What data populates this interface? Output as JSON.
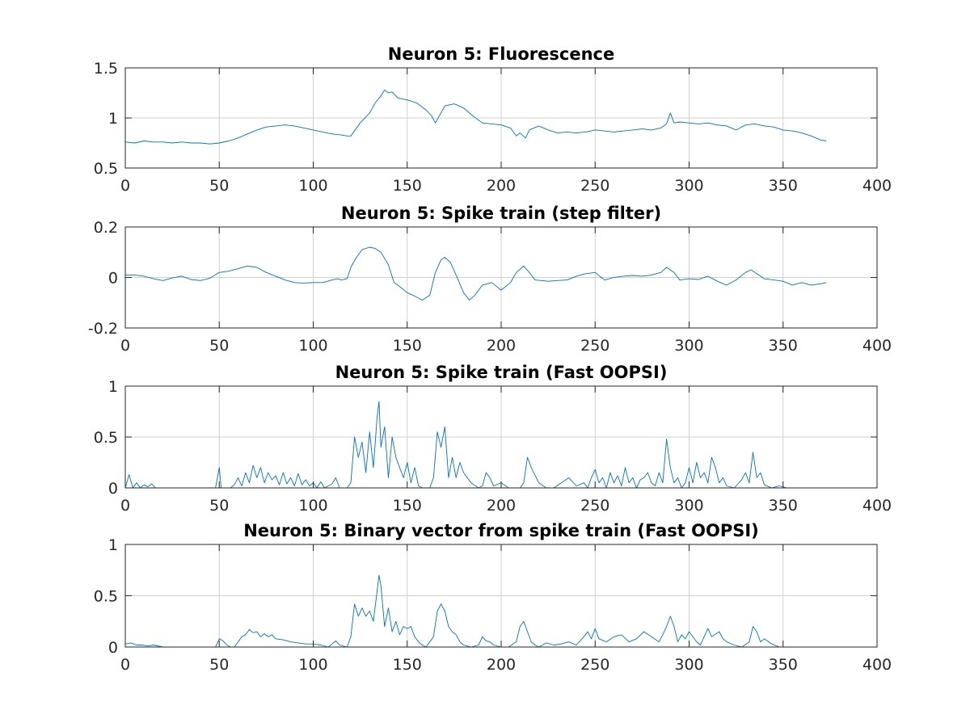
{
  "colors": {
    "series": "#0072BD",
    "axes": "#262626",
    "grid": "#d0d0d0"
  },
  "chart_data": [
    {
      "type": "line",
      "title": "Neuron 5: Fluorescence",
      "xlim": [
        0,
        400
      ],
      "ylim": [
        0.5,
        1.5
      ],
      "xticks": [
        0,
        50,
        100,
        150,
        200,
        250,
        300,
        350,
        400
      ],
      "xtick_labels": [
        "0",
        "50",
        "100",
        "150",
        "200",
        "250",
        "300",
        "350",
        "400"
      ],
      "yticks": [
        0.5,
        1,
        1.5
      ],
      "ytick_labels": [
        "0.5",
        "1",
        "1.5"
      ],
      "grid": true,
      "series": [
        {
          "x": [
            0,
            5,
            10,
            15,
            20,
            25,
            30,
            35,
            40,
            45,
            50,
            55,
            60,
            65,
            70,
            75,
            80,
            85,
            90,
            95,
            100,
            105,
            110,
            115,
            118,
            120,
            125,
            130,
            133,
            136,
            138,
            140,
            142,
            145,
            150,
            155,
            160,
            163,
            165,
            168,
            170,
            175,
            180,
            185,
            190,
            195,
            200,
            205,
            208,
            210,
            213,
            215,
            220,
            225,
            230,
            235,
            240,
            245,
            250,
            255,
            260,
            265,
            270,
            275,
            280,
            285,
            288,
            290,
            292,
            295,
            300,
            305,
            310,
            315,
            320,
            325,
            330,
            335,
            340,
            345,
            350,
            355,
            360,
            365,
            370,
            373
          ],
          "y": [
            0.76,
            0.75,
            0.77,
            0.76,
            0.76,
            0.75,
            0.76,
            0.75,
            0.75,
            0.74,
            0.75,
            0.77,
            0.8,
            0.84,
            0.88,
            0.91,
            0.92,
            0.93,
            0.92,
            0.9,
            0.88,
            0.86,
            0.84,
            0.83,
            0.82,
            0.82,
            0.95,
            1.05,
            1.15,
            1.22,
            1.28,
            1.25,
            1.26,
            1.2,
            1.18,
            1.15,
            1.08,
            1.02,
            0.95,
            1.05,
            1.12,
            1.14,
            1.1,
            1.02,
            0.95,
            0.94,
            0.93,
            0.9,
            0.82,
            0.85,
            0.8,
            0.88,
            0.92,
            0.88,
            0.85,
            0.86,
            0.85,
            0.86,
            0.88,
            0.87,
            0.86,
            0.87,
            0.88,
            0.89,
            0.88,
            0.9,
            0.94,
            1.05,
            0.95,
            0.96,
            0.95,
            0.94,
            0.95,
            0.93,
            0.92,
            0.88,
            0.93,
            0.94,
            0.92,
            0.91,
            0.88,
            0.87,
            0.85,
            0.82,
            0.78,
            0.77
          ]
        }
      ]
    },
    {
      "type": "line",
      "title": "Neuron 5: Spike train (step filter)",
      "xlim": [
        0,
        400
      ],
      "ylim": [
        -0.2,
        0.2
      ],
      "xticks": [
        0,
        50,
        100,
        150,
        200,
        250,
        300,
        350,
        400
      ],
      "xtick_labels": [
        "0",
        "50",
        "100",
        "150",
        "200",
        "250",
        "300",
        "350",
        "400"
      ],
      "yticks": [
        -0.2,
        0,
        0.2
      ],
      "ytick_labels": [
        "-0.2",
        "0",
        "0.2"
      ],
      "grid": true,
      "series": [
        {
          "x": [
            0,
            5,
            10,
            15,
            20,
            25,
            30,
            35,
            40,
            45,
            50,
            55,
            60,
            65,
            70,
            75,
            80,
            85,
            90,
            95,
            100,
            105,
            110,
            113,
            115,
            118,
            120,
            123,
            126,
            130,
            133,
            136,
            140,
            143,
            145,
            150,
            153,
            158,
            162,
            165,
            168,
            170,
            173,
            176,
            180,
            183,
            186,
            190,
            195,
            200,
            205,
            208,
            212,
            215,
            218,
            225,
            230,
            235,
            240,
            245,
            250,
            255,
            260,
            265,
            270,
            275,
            280,
            285,
            288,
            292,
            295,
            300,
            305,
            310,
            315,
            320,
            325,
            330,
            333,
            336,
            340,
            345,
            350,
            355,
            360,
            365,
            370,
            373
          ],
          "y": [
            0.01,
            0.01,
            0.005,
            -0.005,
            -0.012,
            -0.002,
            0.005,
            -0.008,
            -0.012,
            -0.003,
            0.02,
            0.025,
            0.035,
            0.045,
            0.04,
            0.02,
            0.005,
            -0.01,
            -0.02,
            -0.022,
            -0.02,
            -0.02,
            -0.01,
            -0.005,
            -0.01,
            -0.005,
            0.04,
            0.08,
            0.11,
            0.12,
            0.115,
            0.1,
            0.05,
            -0.02,
            -0.03,
            -0.06,
            -0.07,
            -0.09,
            -0.07,
            0.02,
            0.07,
            0.08,
            0.06,
            0.01,
            -0.06,
            -0.09,
            -0.07,
            -0.03,
            -0.02,
            -0.05,
            -0.02,
            0.02,
            0.045,
            0.02,
            -0.01,
            -0.015,
            -0.012,
            -0.01,
            0.005,
            0.015,
            0.02,
            -0.01,
            0.0,
            0.005,
            0.008,
            0.005,
            0.01,
            0.02,
            0.04,
            0.02,
            -0.01,
            -0.005,
            -0.008,
            0.005,
            -0.015,
            -0.03,
            -0.01,
            0.02,
            0.03,
            0.015,
            -0.005,
            -0.01,
            -0.015,
            -0.03,
            -0.02,
            -0.03,
            -0.025,
            -0.02
          ]
        }
      ]
    },
    {
      "type": "line",
      "title": "Neuron 5: Spike train (Fast OOPSI)",
      "xlim": [
        0,
        400
      ],
      "ylim": [
        0,
        1
      ],
      "xticks": [
        0,
        50,
        100,
        150,
        200,
        250,
        300,
        350,
        400
      ],
      "xtick_labels": [
        "0",
        "50",
        "100",
        "150",
        "200",
        "250",
        "300",
        "350",
        "400"
      ],
      "yticks": [
        0,
        0.5,
        1
      ],
      "ytick_labels": [
        "0",
        "0.5",
        "1"
      ],
      "grid": true,
      "series": [
        {
          "x": [
            0,
            2,
            4,
            6,
            8,
            10,
            12,
            14,
            16,
            20,
            30,
            40,
            48,
            50,
            51,
            52,
            54,
            56,
            58,
            60,
            62,
            64,
            66,
            68,
            70,
            72,
            74,
            76,
            78,
            80,
            82,
            84,
            86,
            88,
            90,
            92,
            94,
            96,
            98,
            100,
            102,
            104,
            106,
            108,
            110,
            112,
            114,
            116,
            118,
            120,
            122,
            124,
            126,
            128,
            130,
            132,
            134,
            135,
            136,
            138,
            140,
            142,
            144,
            146,
            148,
            150,
            152,
            154,
            156,
            158,
            160,
            162,
            164,
            166,
            168,
            170,
            172,
            174,
            176,
            178,
            180,
            184,
            188,
            190,
            192,
            194,
            196,
            200,
            204,
            208,
            210,
            212,
            214,
            216,
            220,
            224,
            228,
            232,
            236,
            240,
            244,
            246,
            248,
            250,
            252,
            254,
            256,
            258,
            260,
            262,
            264,
            266,
            268,
            270,
            272,
            274,
            276,
            278,
            280,
            282,
            284,
            286,
            288,
            290,
            292,
            294,
            296,
            298,
            300,
            302,
            304,
            306,
            308,
            310,
            312,
            314,
            316,
            318,
            320,
            324,
            328,
            330,
            332,
            334,
            336,
            338,
            340,
            344,
            348,
            352,
            360,
            370,
            374
          ],
          "y": [
            0,
            0.13,
            0,
            0.05,
            0,
            0.03,
            0.01,
            0.04,
            0,
            0,
            0,
            0,
            0,
            0.2,
            0,
            0,
            0,
            0,
            0.03,
            0.1,
            0.02,
            0.15,
            0.05,
            0.22,
            0.1,
            0.2,
            0.05,
            0.15,
            0.08,
            0.12,
            0.03,
            0.15,
            0.04,
            0.1,
            0.02,
            0.14,
            0.03,
            0.08,
            0.02,
            0.05,
            0,
            0.06,
            0,
            0.02,
            0.04,
            0.1,
            0,
            0,
            0,
            0.05,
            0.5,
            0.3,
            0.45,
            0.15,
            0.55,
            0.2,
            0.7,
            0.85,
            0.4,
            0.6,
            0.1,
            0.5,
            0.3,
            0.2,
            0.1,
            0.25,
            0.05,
            0.2,
            0.02,
            0,
            0,
            0,
            0.1,
            0.55,
            0.4,
            0.6,
            0.1,
            0.3,
            0.1,
            0.25,
            0.15,
            0.05,
            0,
            0.02,
            0.15,
            0.1,
            0.02,
            0.05,
            0,
            0,
            0,
            0.05,
            0.3,
            0.2,
            0.05,
            0,
            0,
            0.05,
            0.1,
            0.02,
            0.05,
            0,
            0.1,
            0.18,
            0.05,
            0.1,
            0,
            0.15,
            0.05,
            0.12,
            0.02,
            0.2,
            0.05,
            0.1,
            0,
            0.08,
            0.1,
            0.15,
            0.05,
            0.02,
            0.15,
            0.05,
            0.48,
            0.2,
            0.05,
            0.1,
            0,
            0.05,
            0.2,
            0.05,
            0.25,
            0.1,
            0.15,
            0.05,
            0.3,
            0.2,
            0.05,
            0.1,
            0.02,
            0,
            0.08,
            0.15,
            0.05,
            0.35,
            0.1,
            0.15,
            0.03,
            0,
            0.02,
            0,
            0,
            0,
            0
          ]
        }
      ]
    },
    {
      "type": "line",
      "title": "Neuron 5: Binary vector from spike train (Fast OOPSI)",
      "xlim": [
        0,
        400
      ],
      "ylim": [
        0,
        1
      ],
      "xticks": [
        0,
        50,
        100,
        150,
        200,
        250,
        300,
        350,
        400
      ],
      "xtick_labels": [
        "0",
        "50",
        "100",
        "150",
        "200",
        "250",
        "300",
        "350",
        "400"
      ],
      "yticks": [
        0,
        0.5,
        1
      ],
      "ytick_labels": [
        "0",
        "0.5",
        "1"
      ],
      "grid": true,
      "series": [
        {
          "x": [
            0,
            3,
            6,
            9,
            12,
            15,
            20,
            30,
            40,
            48,
            50,
            52,
            54,
            56,
            58,
            60,
            62,
            64,
            66,
            68,
            70,
            72,
            74,
            76,
            78,
            80,
            84,
            88,
            92,
            96,
            100,
            104,
            108,
            110,
            112,
            114,
            118,
            120,
            122,
            124,
            126,
            128,
            130,
            132,
            134,
            135,
            136,
            138,
            140,
            142,
            144,
            146,
            148,
            150,
            152,
            154,
            156,
            158,
            160,
            164,
            166,
            168,
            170,
            172,
            174,
            176,
            178,
            180,
            184,
            188,
            190,
            192,
            194,
            196,
            200,
            204,
            208,
            210,
            212,
            214,
            216,
            218,
            220,
            224,
            228,
            232,
            236,
            240,
            244,
            246,
            248,
            250,
            252,
            256,
            260,
            264,
            268,
            272,
            276,
            280,
            284,
            286,
            288,
            290,
            292,
            294,
            296,
            298,
            300,
            304,
            306,
            308,
            310,
            312,
            316,
            318,
            320,
            324,
            328,
            332,
            334,
            336,
            338,
            340,
            344,
            348,
            352,
            360,
            370,
            374
          ],
          "y": [
            0.03,
            0.04,
            0.02,
            0.02,
            0.01,
            0.02,
            0,
            0,
            0,
            0,
            0.08,
            0.06,
            0.02,
            0,
            0,
            0.05,
            0.1,
            0.12,
            0.17,
            0.14,
            0.15,
            0.1,
            0.13,
            0.1,
            0.12,
            0.08,
            0.07,
            0.05,
            0.04,
            0.03,
            0.03,
            0.02,
            0,
            0.03,
            0.06,
            0.02,
            0,
            0.1,
            0.42,
            0.3,
            0.38,
            0.3,
            0.35,
            0.25,
            0.55,
            0.7,
            0.6,
            0.2,
            0.38,
            0.15,
            0.25,
            0.12,
            0.2,
            0.18,
            0.2,
            0.1,
            0.05,
            0.02,
            0,
            0.1,
            0.35,
            0.42,
            0.35,
            0.2,
            0.15,
            0.12,
            0.05,
            0.02,
            0,
            0.02,
            0.1,
            0.06,
            0.05,
            0.02,
            0,
            0,
            0.05,
            0.2,
            0.25,
            0.15,
            0.05,
            0.02,
            0,
            0.04,
            0.02,
            0.03,
            0.05,
            0.02,
            0.1,
            0.15,
            0.08,
            0.18,
            0.08,
            0.05,
            0.1,
            0.12,
            0.05,
            0.08,
            0.15,
            0.1,
            0.05,
            0.12,
            0.2,
            0.3,
            0.2,
            0.05,
            0.12,
            0.08,
            0.15,
            0.05,
            0.02,
            0.1,
            0.18,
            0.1,
            0.15,
            0.08,
            0.05,
            0.02,
            0,
            0.05,
            0.2,
            0.15,
            0.05,
            0.08,
            0.03,
            0,
            0,
            0,
            0,
            0
          ]
        }
      ]
    }
  ]
}
